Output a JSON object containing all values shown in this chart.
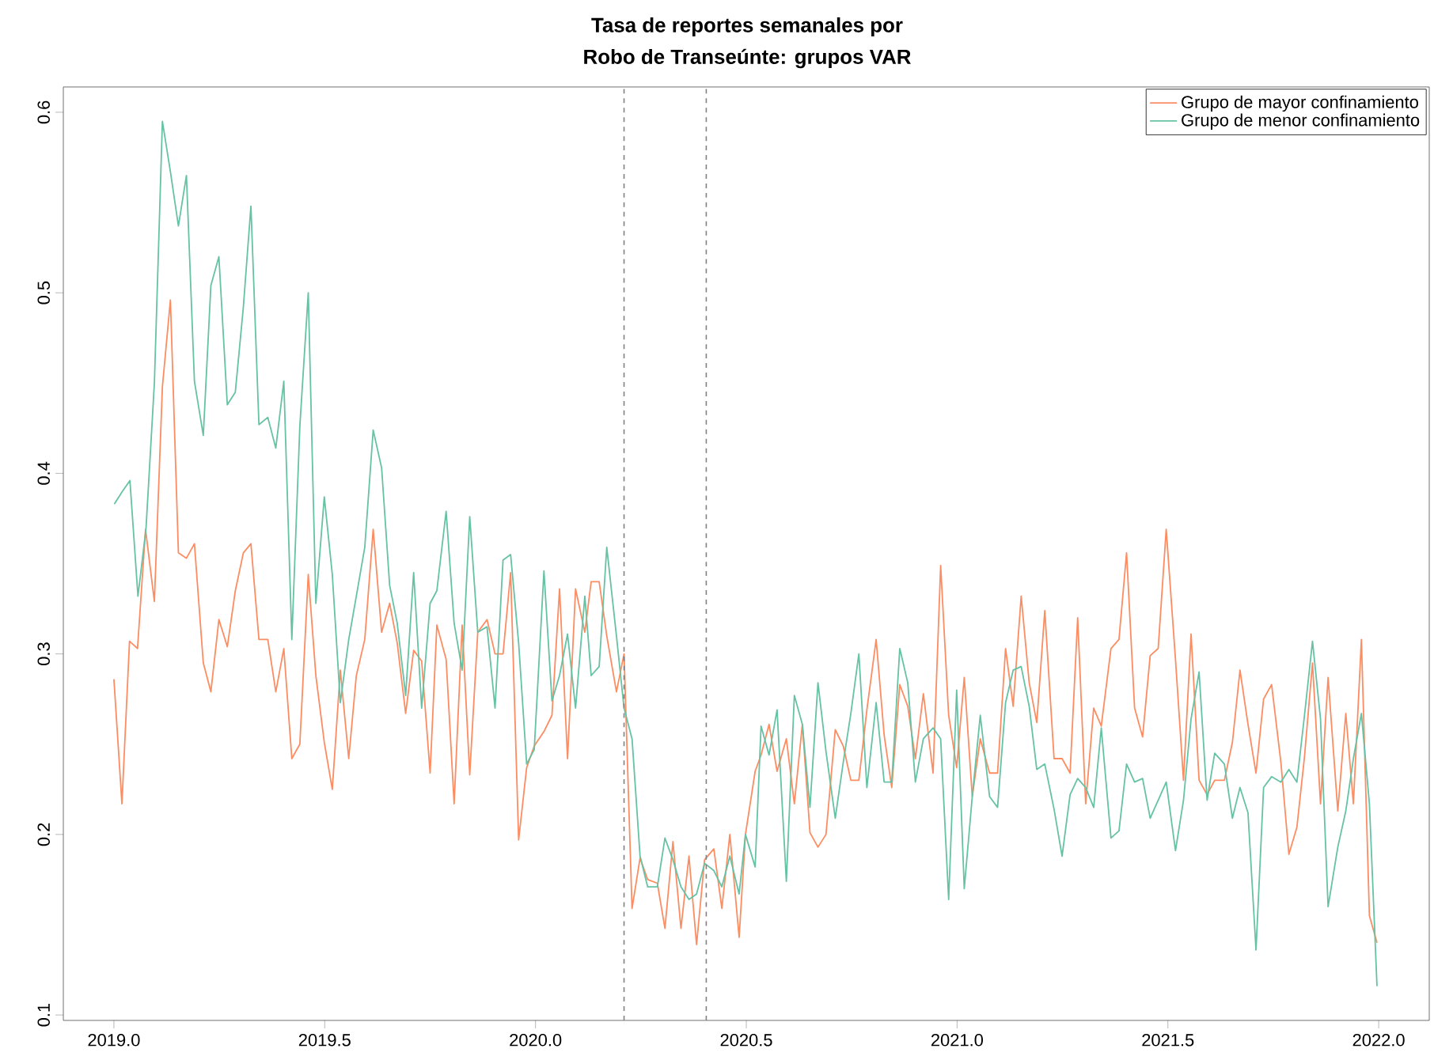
{
  "chart_data": {
    "type": "line",
    "title": "Tasa de reportes semanales por",
    "subtitle": "Robo de Transeúnte: grupos VAR",
    "xlim": [
      2018.88,
      2022.12
    ],
    "ylim": [
      0.097,
      0.614
    ],
    "xticks": [
      {
        "value": 2019.0,
        "label": "2019.0"
      },
      {
        "value": 2019.5,
        "label": "2019.5"
      },
      {
        "value": 2020.0,
        "label": "2020.0"
      },
      {
        "value": 2020.5,
        "label": "2020.5"
      },
      {
        "value": 2021.0,
        "label": "2021.0"
      },
      {
        "value": 2021.5,
        "label": "2021.5"
      },
      {
        "value": 2022.0,
        "label": "2022.0"
      }
    ],
    "yticks": [
      0.1,
      0.2,
      0.3,
      0.4,
      0.5,
      0.6
    ],
    "legend": "top right",
    "line_style": "solid",
    "ref_lines": [
      {
        "axis": "x",
        "value": 2020.21,
        "color": "#808080",
        "line_style": "dashed"
      },
      {
        "axis": "x",
        "value": 2020.405,
        "color": "#808080",
        "line_style": "dashed"
      }
    ],
    "series": [
      {
        "name": "Grupo de mayor confinamiento",
        "color": "#fc8d62",
        "x": [
          2019.0,
          2019.019,
          2019.037,
          2019.056,
          2019.075,
          2019.096,
          2019.115,
          2019.134,
          2019.153,
          2019.172,
          2019.191,
          2019.212,
          2019.23,
          2019.249,
          2019.269,
          2019.288,
          2019.307,
          2019.325,
          2019.344,
          2019.365,
          2019.384,
          2019.403,
          2019.422,
          2019.441,
          2019.461,
          2019.479,
          2019.499,
          2019.518,
          2019.537,
          2019.557,
          2019.575,
          2019.595,
          2019.615,
          2019.635,
          2019.654,
          2019.672,
          2019.692,
          2019.711,
          2019.73,
          2019.75,
          2019.766,
          2019.788,
          2019.807,
          2019.826,
          2019.844,
          2019.863,
          2019.885,
          2019.904,
          2019.923,
          2019.941,
          2019.96,
          2019.979,
          2019.997,
          2020.02,
          2020.039,
          2020.057,
          2020.076,
          2020.095,
          2020.117,
          2020.132,
          2020.151,
          2020.169,
          2020.192,
          2020.21,
          2020.229,
          2020.248,
          2020.266,
          2020.289,
          2020.307,
          2020.326,
          2020.345,
          2020.364,
          2020.382,
          2020.401,
          2020.423,
          2020.442,
          2020.461,
          2020.483,
          2020.498,
          2020.521,
          2020.535,
          2020.554,
          2020.573,
          2020.595,
          2020.614,
          2020.633,
          2020.651,
          2020.67,
          2020.689,
          2020.711,
          2020.73,
          2020.748,
          2020.767,
          2020.786,
          2020.808,
          2020.827,
          2020.845,
          2020.864,
          2020.883,
          2020.901,
          2020.92,
          2020.943,
          2020.961,
          2020.98,
          2020.999,
          2021.017,
          2021.036,
          2021.055,
          2021.077,
          2021.096,
          2021.115,
          2021.133,
          2021.152,
          2021.171,
          2021.189,
          2021.208,
          2021.23,
          2021.249,
          2021.268,
          2021.286,
          2021.305,
          2021.324,
          2021.342,
          2021.365,
          2021.384,
          2021.402,
          2021.421,
          2021.44,
          2021.458,
          2021.477,
          2021.496,
          2021.518,
          2021.537,
          2021.555,
          2021.574,
          2021.593,
          2021.611,
          2021.634,
          2021.653,
          2021.671,
          2021.69,
          2021.709,
          2021.727,
          2021.746,
          2021.768,
          2021.787,
          2021.806,
          2021.824,
          2021.843,
          2021.862,
          2021.88,
          2021.903,
          2021.922,
          2021.94,
          2021.959,
          2021.978,
          2021.996
        ],
        "values": [
          0.286,
          0.217,
          0.307,
          0.303,
          0.369,
          0.329,
          0.448,
          0.496,
          0.356,
          0.353,
          0.361,
          0.295,
          0.279,
          0.319,
          0.304,
          0.335,
          0.356,
          0.361,
          0.308,
          0.308,
          0.279,
          0.303,
          0.242,
          0.25,
          0.344,
          0.288,
          0.251,
          0.225,
          0.291,
          0.242,
          0.288,
          0.308,
          0.369,
          0.312,
          0.328,
          0.306,
          0.267,
          0.302,
          0.296,
          0.234,
          0.316,
          0.297,
          0.217,
          0.316,
          0.233,
          0.312,
          0.319,
          0.3,
          0.3,
          0.345,
          0.197,
          0.237,
          0.249,
          0.257,
          0.266,
          0.336,
          0.242,
          0.336,
          0.312,
          0.34,
          0.34,
          0.31,
          0.279,
          0.3,
          0.159,
          0.187,
          0.175,
          0.173,
          0.148,
          0.196,
          0.148,
          0.188,
          0.139,
          0.186,
          0.192,
          0.159,
          0.2,
          0.143,
          0.2,
          0.235,
          0.244,
          0.261,
          0.235,
          0.253,
          0.217,
          0.261,
          0.201,
          0.193,
          0.2,
          0.258,
          0.249,
          0.23,
          0.23,
          0.269,
          0.308,
          0.255,
          0.226,
          0.283,
          0.271,
          0.242,
          0.278,
          0.234,
          0.349,
          0.266,
          0.237,
          0.287,
          0.221,
          0.253,
          0.234,
          0.234,
          0.303,
          0.271,
          0.332,
          0.284,
          0.262,
          0.324,
          0.242,
          0.242,
          0.234,
          0.32,
          0.217,
          0.27,
          0.26,
          0.303,
          0.308,
          0.356,
          0.27,
          0.254,
          0.299,
          0.303,
          0.369,
          0.297,
          0.23,
          0.311,
          0.23,
          0.222,
          0.23,
          0.23,
          0.251,
          0.291,
          0.261,
          0.234,
          0.275,
          0.283,
          0.24,
          0.189,
          0.204,
          0.243,
          0.295,
          0.217,
          0.287,
          0.213,
          0.267,
          0.217,
          0.308,
          0.155,
          0.14
        ]
      },
      {
        "name": "Grupo de menor confinamiento",
        "color": "#66c2a5",
        "x": [
          2019.001,
          2019.02,
          2019.038,
          2019.057,
          2019.076,
          2019.096,
          2019.115,
          2019.134,
          2019.153,
          2019.172,
          2019.191,
          2019.212,
          2019.23,
          2019.249,
          2019.269,
          2019.288,
          2019.307,
          2019.325,
          2019.344,
          2019.365,
          2019.384,
          2019.403,
          2019.422,
          2019.441,
          2019.461,
          2019.479,
          2019.499,
          2019.518,
          2019.537,
          2019.557,
          2019.575,
          2019.595,
          2019.615,
          2019.635,
          2019.654,
          2019.672,
          2019.692,
          2019.711,
          2019.73,
          2019.75,
          2019.766,
          2019.788,
          2019.807,
          2019.826,
          2019.844,
          2019.863,
          2019.885,
          2019.904,
          2019.923,
          2019.941,
          2019.96,
          2019.979,
          2019.997,
          2020.02,
          2020.039,
          2020.057,
          2020.076,
          2020.095,
          2020.117,
          2020.132,
          2020.151,
          2020.169,
          2020.192,
          2020.21,
          2020.229,
          2020.248,
          2020.266,
          2020.289,
          2020.307,
          2020.326,
          2020.345,
          2020.364,
          2020.382,
          2020.401,
          2020.423,
          2020.442,
          2020.461,
          2020.483,
          2020.498,
          2020.521,
          2020.535,
          2020.554,
          2020.573,
          2020.595,
          2020.614,
          2020.633,
          2020.651,
          2020.67,
          2020.689,
          2020.711,
          2020.73,
          2020.748,
          2020.767,
          2020.786,
          2020.808,
          2020.827,
          2020.845,
          2020.864,
          2020.883,
          2020.901,
          2020.92,
          2020.943,
          2020.961,
          2020.98,
          2020.999,
          2021.017,
          2021.036,
          2021.055,
          2021.077,
          2021.096,
          2021.115,
          2021.133,
          2021.152,
          2021.171,
          2021.189,
          2021.208,
          2021.23,
          2021.249,
          2021.268,
          2021.286,
          2021.305,
          2021.324,
          2021.342,
          2021.365,
          2021.384,
          2021.402,
          2021.421,
          2021.44,
          2021.458,
          2021.477,
          2021.496,
          2021.518,
          2021.537,
          2021.555,
          2021.574,
          2021.593,
          2021.611,
          2021.634,
          2021.653,
          2021.671,
          2021.69,
          2021.709,
          2021.727,
          2021.746,
          2021.768,
          2021.787,
          2021.806,
          2021.824,
          2021.843,
          2021.862,
          2021.88,
          2021.903,
          2021.922,
          2021.94,
          2021.959,
          2021.978,
          2021.996
        ],
        "values": [
          0.383,
          0.39,
          0.396,
          0.332,
          0.369,
          0.45,
          0.595,
          0.567,
          0.537,
          0.565,
          0.451,
          0.421,
          0.504,
          0.52,
          0.438,
          0.445,
          0.492,
          0.548,
          0.427,
          0.431,
          0.414,
          0.451,
          0.308,
          0.426,
          0.5,
          0.328,
          0.387,
          0.344,
          0.273,
          0.308,
          0.332,
          0.359,
          0.424,
          0.403,
          0.338,
          0.317,
          0.277,
          0.345,
          0.27,
          0.328,
          0.335,
          0.379,
          0.317,
          0.291,
          0.376,
          0.312,
          0.315,
          0.27,
          0.352,
          0.355,
          0.306,
          0.239,
          0.247,
          0.346,
          0.274,
          0.288,
          0.311,
          0.27,
          0.332,
          0.288,
          0.293,
          0.359,
          0.31,
          0.27,
          0.253,
          0.188,
          0.171,
          0.171,
          0.198,
          0.186,
          0.171,
          0.164,
          0.167,
          0.184,
          0.18,
          0.171,
          0.188,
          0.167,
          0.2,
          0.182,
          0.26,
          0.244,
          0.269,
          0.174,
          0.277,
          0.261,
          0.215,
          0.284,
          0.246,
          0.209,
          0.24,
          0.267,
          0.3,
          0.226,
          0.273,
          0.229,
          0.229,
          0.303,
          0.284,
          0.229,
          0.253,
          0.259,
          0.253,
          0.164,
          0.28,
          0.17,
          0.221,
          0.266,
          0.221,
          0.215,
          0.273,
          0.291,
          0.293,
          0.271,
          0.236,
          0.239,
          0.214,
          0.188,
          0.222,
          0.231,
          0.226,
          0.215,
          0.259,
          0.198,
          0.202,
          0.239,
          0.229,
          0.231,
          0.209,
          0.219,
          0.229,
          0.191,
          0.219,
          0.264,
          0.29,
          0.219,
          0.245,
          0.239,
          0.209,
          0.226,
          0.212,
          0.136,
          0.226,
          0.232,
          0.229,
          0.236,
          0.229,
          0.266,
          0.307,
          0.264,
          0.16,
          0.193,
          0.213,
          0.242,
          0.267,
          0.217,
          0.116
        ]
      }
    ]
  }
}
